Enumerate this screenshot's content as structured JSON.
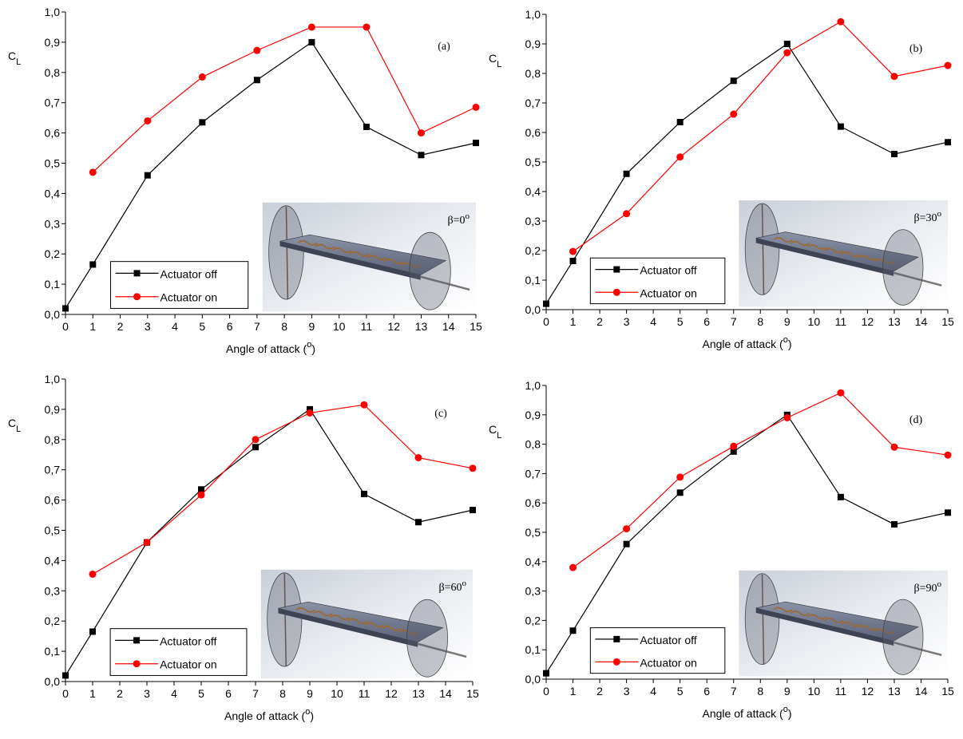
{
  "chart_data": [
    {
      "type": "line",
      "panel_label": "(a)",
      "annotation": [
        "β=0",
        "o"
      ],
      "y_label": [
        "C",
        "L"
      ],
      "x_label": [
        "Angle of attack (",
        "o",
        ")"
      ],
      "xlim": [
        0,
        15
      ],
      "ylim": [
        0,
        1
      ],
      "xticks": [
        0,
        1,
        2,
        3,
        4,
        5,
        6,
        7,
        8,
        9,
        10,
        11,
        12,
        13,
        14,
        15
      ],
      "yticks": [
        {
          "value": 0,
          "label": "0,0"
        },
        {
          "value": 0.1,
          "label": "0,1"
        },
        {
          "value": 0.2,
          "label": "0,2"
        },
        {
          "value": 0.3,
          "label": "0,3"
        },
        {
          "value": 0.4,
          "label": "0,4"
        },
        {
          "value": 0.5,
          "label": "0,5"
        },
        {
          "value": 0.6,
          "label": "0,6"
        },
        {
          "value": 0.7,
          "label": "0,7"
        },
        {
          "value": 0.8,
          "label": "0,8"
        },
        {
          "value": 0.9,
          "label": "0,9"
        },
        {
          "value": 1,
          "label": "1,0"
        }
      ],
      "legend": "lower left",
      "series": [
        {
          "name": "Actuator off",
          "color": "#000000",
          "marker": "square",
          "x": [
            0,
            1,
            3,
            5,
            7,
            9,
            11,
            13,
            15
          ],
          "values": [
            0.02,
            0.165,
            0.46,
            0.635,
            0.775,
            0.9,
            0.62,
            0.527,
            0.567
          ]
        },
        {
          "name": "Actuator on",
          "color": "#ff0000",
          "marker": "circle",
          "x": [
            1,
            3,
            5,
            7,
            9,
            11,
            13,
            15
          ],
          "values": [
            0.47,
            0.64,
            0.785,
            0.873,
            0.95,
            0.95,
            0.6,
            0.685
          ]
        }
      ]
    },
    {
      "type": "line",
      "panel_label": "(b)",
      "annotation": [
        "β=30",
        "o"
      ],
      "y_label": [
        "C",
        "L"
      ],
      "x_label": [
        "Angle of attack (",
        "o",
        ")"
      ],
      "xlim": [
        0,
        15
      ],
      "ylim": [
        0,
        1
      ],
      "xticks": [
        0,
        1,
        2,
        3,
        4,
        5,
        6,
        7,
        8,
        9,
        10,
        11,
        12,
        13,
        14,
        15
      ],
      "yticks": [
        {
          "value": 0,
          "label": "0,0"
        },
        {
          "value": 0.1,
          "label": "0,1"
        },
        {
          "value": 0.2,
          "label": "0,2"
        },
        {
          "value": 0.3,
          "label": "0,3"
        },
        {
          "value": 0.4,
          "label": "0,4"
        },
        {
          "value": 0.5,
          "label": "0,5"
        },
        {
          "value": 0.6,
          "label": "0,6"
        },
        {
          "value": 0.7,
          "label": "0,7"
        },
        {
          "value": 0.8,
          "label": "0,8"
        },
        {
          "value": 0.9,
          "label": "0,9"
        },
        {
          "value": 1,
          "label": "1,0"
        }
      ],
      "legend": "lower left",
      "series": [
        {
          "name": "Actuator off",
          "color": "#000000",
          "marker": "square",
          "x": [
            0,
            1,
            3,
            5,
            7,
            9,
            11,
            13,
            15
          ],
          "values": [
            0.02,
            0.165,
            0.46,
            0.635,
            0.775,
            0.9,
            0.62,
            0.527,
            0.567
          ]
        },
        {
          "name": "Actuator on",
          "color": "#ff0000",
          "marker": "circle",
          "x": [
            1,
            3,
            5,
            7,
            9,
            11,
            13,
            15
          ],
          "values": [
            0.197,
            0.325,
            0.517,
            0.662,
            0.87,
            0.975,
            0.79,
            0.827
          ]
        }
      ]
    },
    {
      "type": "line",
      "panel_label": "(c)",
      "annotation": [
        "β=60",
        "o"
      ],
      "y_label": [
        "C",
        "L"
      ],
      "x_label": [
        "Angle of attack (",
        "o",
        ")"
      ],
      "xlim": [
        0,
        15
      ],
      "ylim": [
        0,
        1
      ],
      "xticks": [
        0,
        1,
        2,
        3,
        4,
        5,
        6,
        7,
        8,
        9,
        10,
        11,
        12,
        13,
        14,
        15
      ],
      "yticks": [
        {
          "value": 0,
          "label": "0,0"
        },
        {
          "value": 0.1,
          "label": "0,1"
        },
        {
          "value": 0.2,
          "label": "0,2"
        },
        {
          "value": 0.3,
          "label": "0,3"
        },
        {
          "value": 0.4,
          "label": "0,4"
        },
        {
          "value": 0.5,
          "label": "0,5"
        },
        {
          "value": 0.6,
          "label": "0,6"
        },
        {
          "value": 0.7,
          "label": "0,7"
        },
        {
          "value": 0.8,
          "label": "0,8"
        },
        {
          "value": 0.9,
          "label": "0,9"
        },
        {
          "value": 1,
          "label": "1,0"
        }
      ],
      "legend": "lower left",
      "series": [
        {
          "name": "Actuator off",
          "color": "#000000",
          "marker": "square",
          "x": [
            0,
            1,
            3,
            5,
            7,
            9,
            11,
            13,
            15
          ],
          "values": [
            0.02,
            0.165,
            0.46,
            0.635,
            0.775,
            0.9,
            0.62,
            0.527,
            0.567
          ]
        },
        {
          "name": "Actuator on",
          "color": "#ff0000",
          "marker": "circle",
          "x": [
            1,
            3,
            5,
            7,
            9,
            11,
            13,
            15
          ],
          "values": [
            0.355,
            0.46,
            0.617,
            0.8,
            0.888,
            0.915,
            0.74,
            0.705
          ]
        }
      ]
    },
    {
      "type": "line",
      "panel_label": "(d)",
      "annotation": [
        "β=90",
        "o"
      ],
      "y_label": [
        "C",
        "L"
      ],
      "x_label": [
        "Angle of attack (",
        "o",
        ")"
      ],
      "xlim": [
        0,
        15
      ],
      "ylim": [
        0,
        1
      ],
      "xticks": [
        0,
        1,
        2,
        3,
        4,
        5,
        6,
        7,
        8,
        9,
        10,
        11,
        12,
        13,
        14,
        15
      ],
      "yticks": [
        {
          "value": 0,
          "label": "0,0"
        },
        {
          "value": 0.1,
          "label": "0,1"
        },
        {
          "value": 0.2,
          "label": "0,2"
        },
        {
          "value": 0.3,
          "label": "0,3"
        },
        {
          "value": 0.4,
          "label": "0,4"
        },
        {
          "value": 0.5,
          "label": "0,5"
        },
        {
          "value": 0.6,
          "label": "0,6"
        },
        {
          "value": 0.7,
          "label": "0,7"
        },
        {
          "value": 0.8,
          "label": "0,8"
        },
        {
          "value": 0.9,
          "label": "0,9"
        },
        {
          "value": 1,
          "label": "1,0"
        }
      ],
      "legend": "lower left",
      "series": [
        {
          "name": "Actuator off",
          "color": "#000000",
          "marker": "square",
          "x": [
            0,
            1,
            3,
            5,
            7,
            9,
            11,
            13,
            15
          ],
          "values": [
            0.02,
            0.165,
            0.46,
            0.635,
            0.775,
            0.9,
            0.62,
            0.527,
            0.567
          ]
        },
        {
          "name": "Actuator on",
          "color": "#ff0000",
          "marker": "circle",
          "x": [
            1,
            3,
            5,
            7,
            9,
            11,
            13,
            15
          ],
          "values": [
            0.38,
            0.512,
            0.688,
            0.793,
            0.89,
            0.975,
            0.79,
            0.763
          ]
        }
      ]
    }
  ]
}
